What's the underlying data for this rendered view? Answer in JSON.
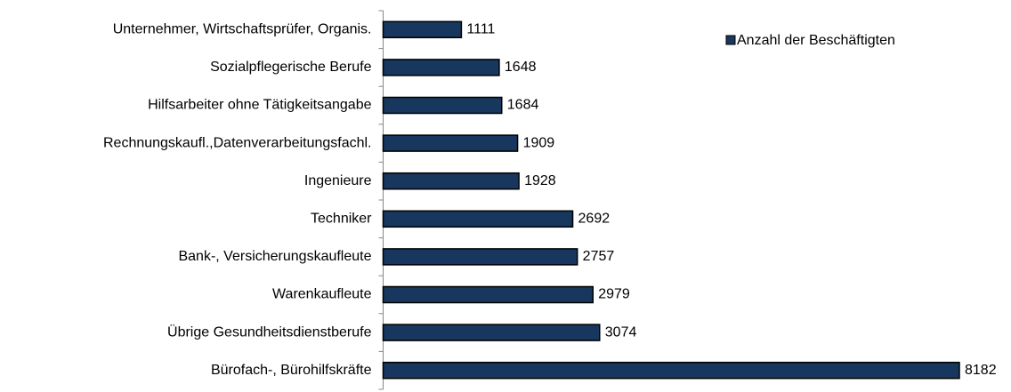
{
  "chart_data": {
    "type": "bar",
    "orientation": "horizontal",
    "categories": [
      "Unternehmer, Wirtschaftsprüfer, Organis.",
      "Sozialpflegerische Berufe",
      "Hilfsarbeiter ohne Tätigkeitsangabe",
      "Rechnungskaufl.,Datenverarbeitungsfachl.",
      "Ingenieure",
      "Techniker",
      "Bank-, Versicherungskaufleute",
      "Warenkaufleute",
      "Übrige Gesundheitsdienstberufe",
      "Bürofach-, Bürohilfskräfte"
    ],
    "series": [
      {
        "name": "Anzahl der Beschäftigten",
        "color": "#17375e",
        "values": [
          1111,
          1648,
          1684,
          1909,
          1928,
          2692,
          2757,
          2979,
          3074,
          8182
        ]
      }
    ],
    "legend": "upper right",
    "data_labels": true
  }
}
